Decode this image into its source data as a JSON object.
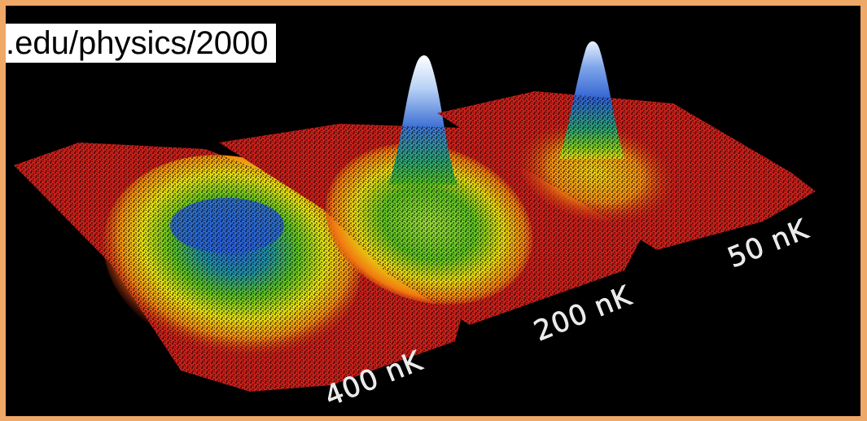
{
  "url_text": ".edu/physics/2000",
  "temperature_labels": {
    "left": "400 nK",
    "middle": "200 nK",
    "right": "50 nK"
  },
  "colors": {
    "border": "#f0a868",
    "background": "#000000",
    "url_box": "#ffffff"
  }
}
